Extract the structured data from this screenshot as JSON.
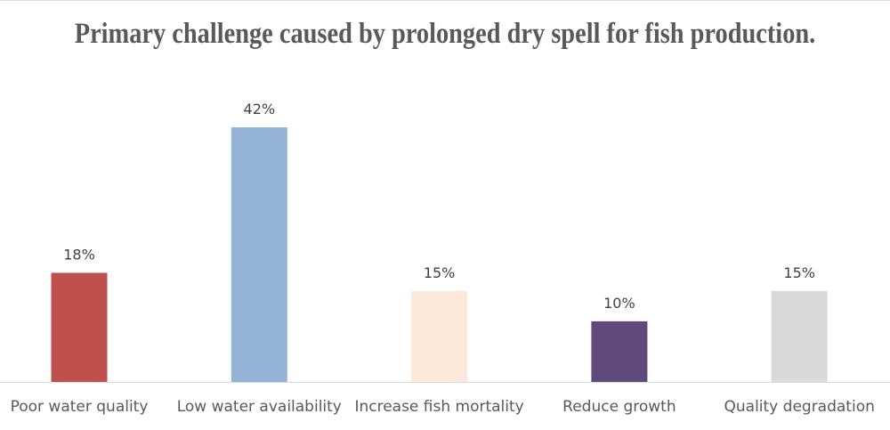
{
  "chart_data": {
    "type": "bar",
    "title": "Primary challenge caused by prolonged dry spell for fish production.",
    "categories": [
      "Poor water quality",
      "Low water availability",
      "Increase fish mortality",
      "Reduce growth",
      "Quality degradation"
    ],
    "values": [
      18,
      42,
      15,
      10,
      15
    ],
    "data_labels": [
      "18%",
      "42%",
      "15%",
      "10%",
      "15%"
    ],
    "colors": [
      "#c0504d",
      "#95b3d7",
      "#fde9d9",
      "#604a7b",
      "#d9d9d9"
    ],
    "xlabel": "",
    "ylabel": "",
    "ylim": [
      0,
      42
    ],
    "unit": "%",
    "grid": false,
    "legend": "none"
  }
}
